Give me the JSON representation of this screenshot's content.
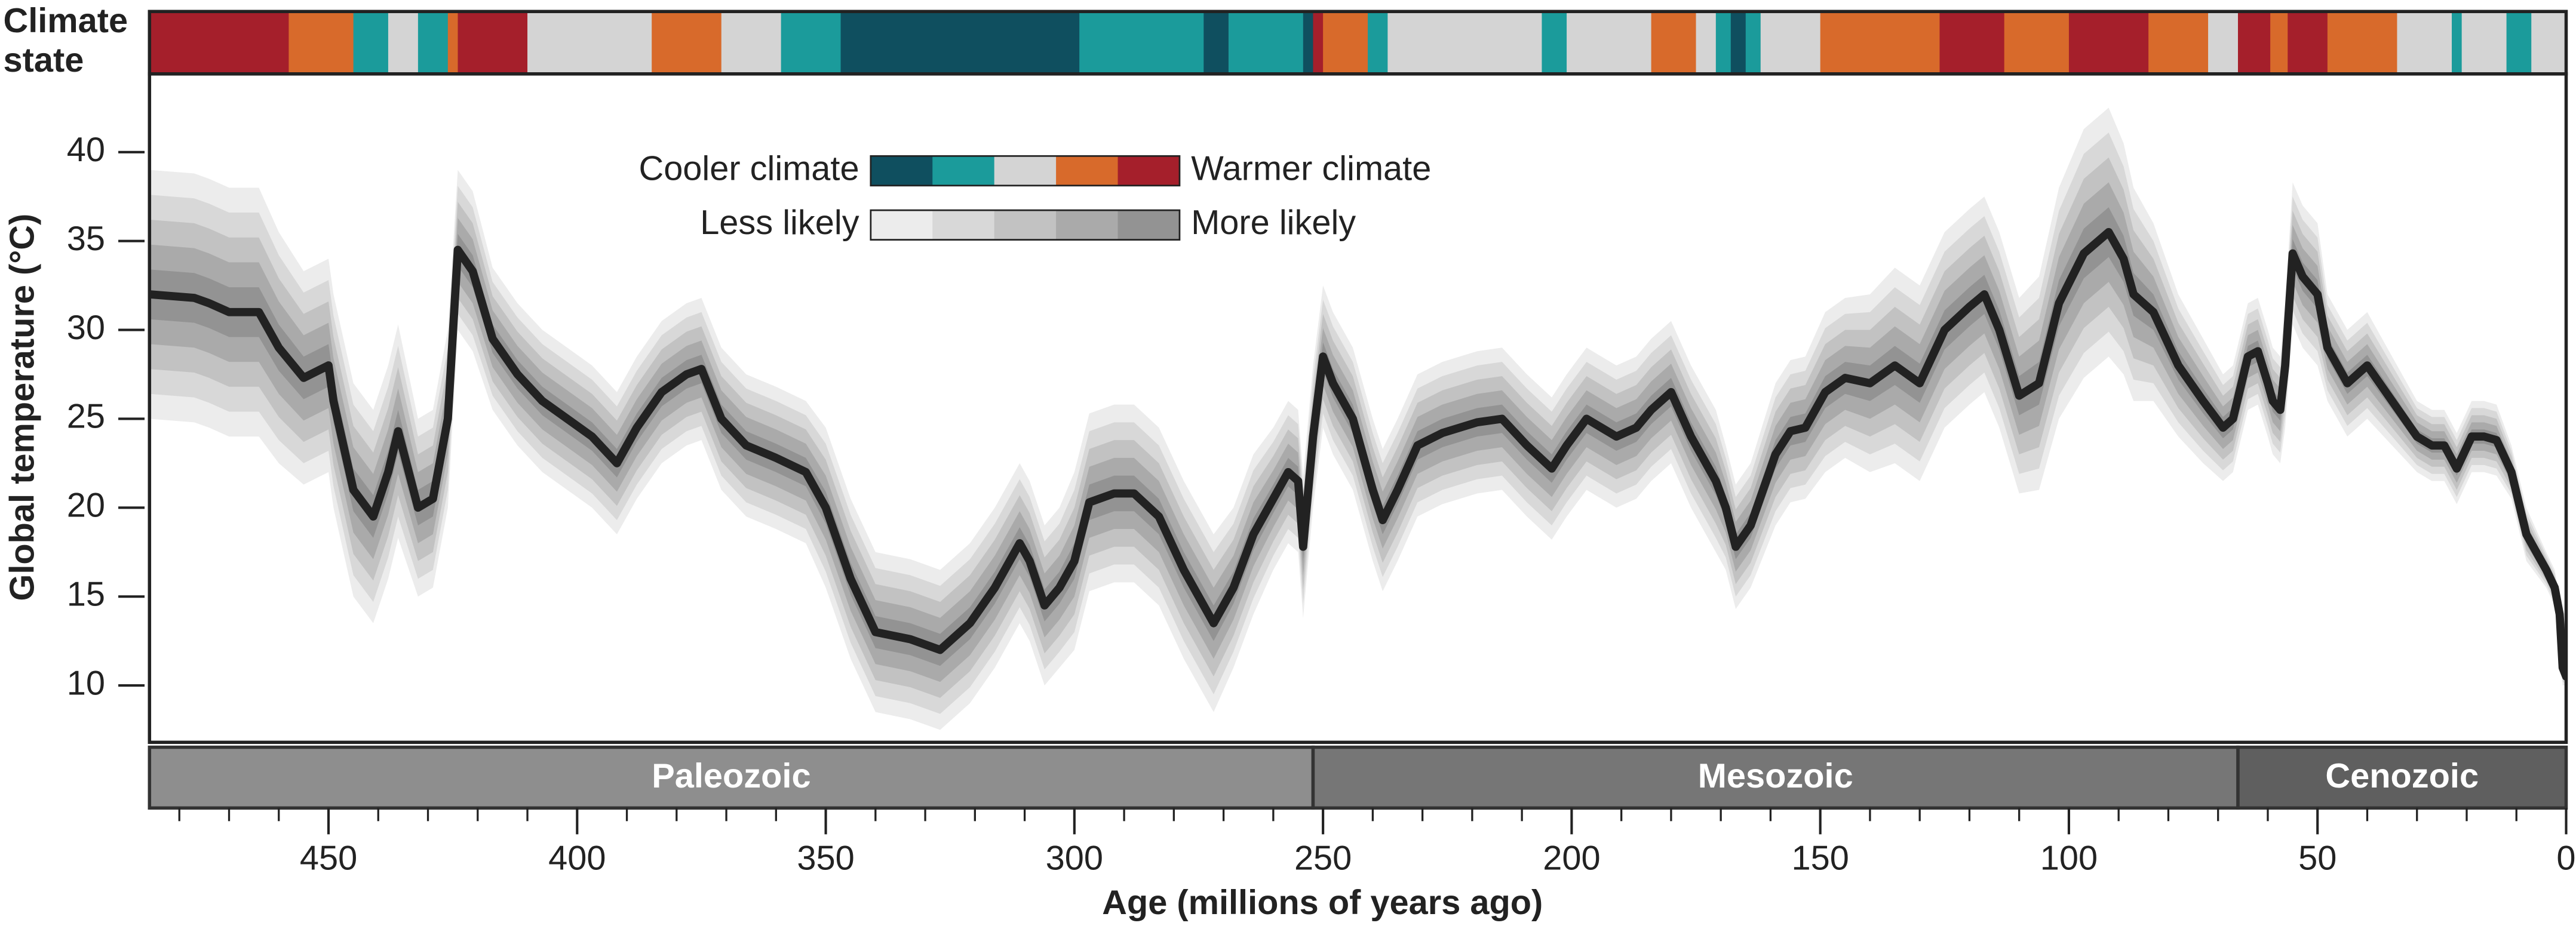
{
  "chart_data": {
    "type": "line",
    "climate_label": [
      "Climate",
      "state"
    ],
    "climate_state": {
      "boundaries": [
        486,
        458,
        445,
        438,
        432,
        426,
        424,
        410,
        385,
        371,
        359,
        347,
        299,
        274,
        269,
        254,
        252,
        250,
        241,
        237,
        206,
        201,
        184,
        175,
        171,
        168,
        165,
        162,
        150,
        126,
        113,
        100,
        84,
        72,
        66,
        59.5,
        56,
        48,
        34,
        23,
        21,
        12,
        7,
        0
      ],
      "levels": [
        4,
        3,
        1,
        2,
        1,
        3,
        4,
        2,
        3,
        2,
        1,
        0,
        1,
        0,
        1,
        0,
        4,
        3,
        1,
        2,
        1,
        2,
        3,
        2,
        1,
        0,
        1,
        2,
        3,
        4,
        3,
        4,
        3,
        2,
        4,
        3,
        4,
        3,
        2,
        1,
        2,
        1,
        2
      ],
      "colors": [
        "#0f4f5f",
        "#1b9b9b",
        "#d4d4d4",
        "#d86a2b",
        "#a51f2b"
      ]
    },
    "legend": {
      "cooler": "Cooler climate",
      "warmer": "Warmer climate",
      "less": "Less likely",
      "more": "More likely",
      "likelihood_colors": [
        "#ececec",
        "#d8d8d8",
        "#c2c2c2",
        "#aaaaaa",
        "#939393"
      ]
    },
    "eras": [
      {
        "name": "Paleozoic",
        "start": 486,
        "end": 252,
        "color": "#8e8e8e"
      },
      {
        "name": "Mesozoic",
        "start": 252,
        "end": 66,
        "color": "#767676"
      },
      {
        "name": "Cenozoic",
        "start": 66,
        "end": 0,
        "color": "#5f5f5f"
      }
    ],
    "x": [
      486,
      477,
      474,
      470,
      464,
      460,
      455,
      450,
      449,
      445,
      441,
      438,
      436,
      432,
      429,
      426,
      424,
      421,
      417,
      412,
      407,
      402,
      397,
      392,
      388,
      383,
      378,
      375,
      371,
      366,
      360,
      354,
      350,
      345,
      340,
      333,
      327,
      321,
      316,
      311,
      309,
      306,
      303,
      300,
      297,
      292,
      288,
      283,
      278,
      272,
      268,
      264,
      260,
      257,
      255,
      254,
      252,
      250,
      248,
      244,
      240,
      238,
      235,
      231,
      226,
      219,
      214,
      209,
      204,
      201,
      197,
      194,
      191,
      187,
      184,
      180,
      176,
      171,
      169,
      167,
      164,
      159,
      156,
      153,
      149,
      145,
      140,
      135,
      130,
      125,
      120,
      117,
      114,
      110,
      106,
      102,
      97,
      92,
      89,
      87,
      83,
      78,
      73,
      69,
      67,
      64,
      62,
      60,
      59,
      57.5,
      56.5,
      55,
      53,
      50,
      48,
      44,
      40,
      35,
      30,
      27,
      24.5,
      22,
      19,
      16.5,
      14,
      11,
      8,
      4,
      2.3,
      1.3,
      0.7,
      0
    ],
    "values": [
      32,
      31.8,
      31.5,
      31,
      31,
      29,
      27.3,
      28,
      26,
      21,
      19.5,
      22,
      24.3,
      20,
      20.5,
      25,
      34.5,
      33.3,
      29.5,
      27.5,
      26,
      25,
      24,
      22.5,
      24.5,
      26.5,
      27.5,
      27.8,
      25,
      23.5,
      22.8,
      22,
      20,
      16,
      13,
      12.6,
      12,
      13.5,
      15.5,
      18,
      17,
      14.5,
      15.5,
      17,
      20.3,
      20.8,
      20.8,
      19.5,
      16.5,
      13.5,
      15.5,
      18.5,
      20.5,
      22,
      21.5,
      17.8,
      24,
      28.5,
      27,
      25,
      21,
      19.3,
      21,
      23.5,
      24.2,
      24.8,
      25,
      23.5,
      22.2,
      23.5,
      25,
      24.5,
      24,
      24.5,
      25.5,
      26.5,
      24,
      21.5,
      20,
      17.8,
      19,
      23,
      24.3,
      24.5,
      26.5,
      27.3,
      27,
      28,
      27,
      30,
      31.3,
      32,
      30,
      26.3,
      27,
      31.5,
      34.3,
      35.5,
      34,
      32,
      31,
      28,
      26,
      24.5,
      25,
      28.5,
      28.8,
      27,
      26,
      25.5,
      28,
      34.3,
      33,
      32,
      29,
      27,
      28,
      26,
      24,
      23.5,
      23.5,
      22.2,
      24,
      24,
      23.8,
      22,
      18.5,
      16.5,
      15.5,
      14,
      11,
      10.5
    ],
    "spread": [
      7,
      7,
      7,
      7,
      7,
      6.5,
      6,
      6,
      6,
      6,
      6,
      6,
      6,
      5,
      5,
      5,
      4.5,
      4.5,
      4,
      4,
      4,
      4,
      4,
      4,
      4,
      4,
      4,
      4,
      4,
      4,
      4,
      4,
      4.5,
      4.5,
      4.5,
      4.5,
      4.5,
      4.5,
      4.5,
      4.5,
      4.5,
      4.5,
      4.5,
      5,
      5,
      5,
      5,
      5,
      5,
      5,
      4.5,
      4.5,
      4,
      4,
      4,
      4,
      4,
      4,
      4,
      4,
      4,
      4,
      4,
      4,
      4,
      4,
      4,
      4,
      4,
      4,
      4,
      4,
      4,
      4,
      4,
      4,
      4,
      4,
      3.5,
      3.5,
      3.5,
      4,
      4,
      4,
      4.5,
      4.5,
      5,
      5.5,
      5.5,
      5.5,
      5.5,
      5.5,
      5.5,
      5.5,
      6,
      6.5,
      7,
      7,
      6.5,
      6,
      5,
      4,
      3.5,
      3,
      3,
      3,
      3,
      3,
      3,
      3,
      3.5,
      4,
      4,
      4,
      3,
      3,
      3,
      2.5,
      2,
      2,
      2,
      2,
      2,
      2,
      2,
      1.5,
      1.5,
      1,
      1,
      1,
      1,
      0.5
    ],
    "color": "#222222",
    "ylabel": "Global temperature (°C)",
    "xlabel": "Age (millions of years ago)",
    "xlim": [
      486,
      0
    ],
    "ylim": [
      6.8,
      44.4
    ],
    "xticks": [
      450,
      400,
      350,
      300,
      250,
      200,
      150,
      100,
      50,
      0
    ],
    "xminor_step": 10,
    "yticks": [
      10,
      15,
      20,
      25,
      30,
      35,
      40
    ]
  }
}
